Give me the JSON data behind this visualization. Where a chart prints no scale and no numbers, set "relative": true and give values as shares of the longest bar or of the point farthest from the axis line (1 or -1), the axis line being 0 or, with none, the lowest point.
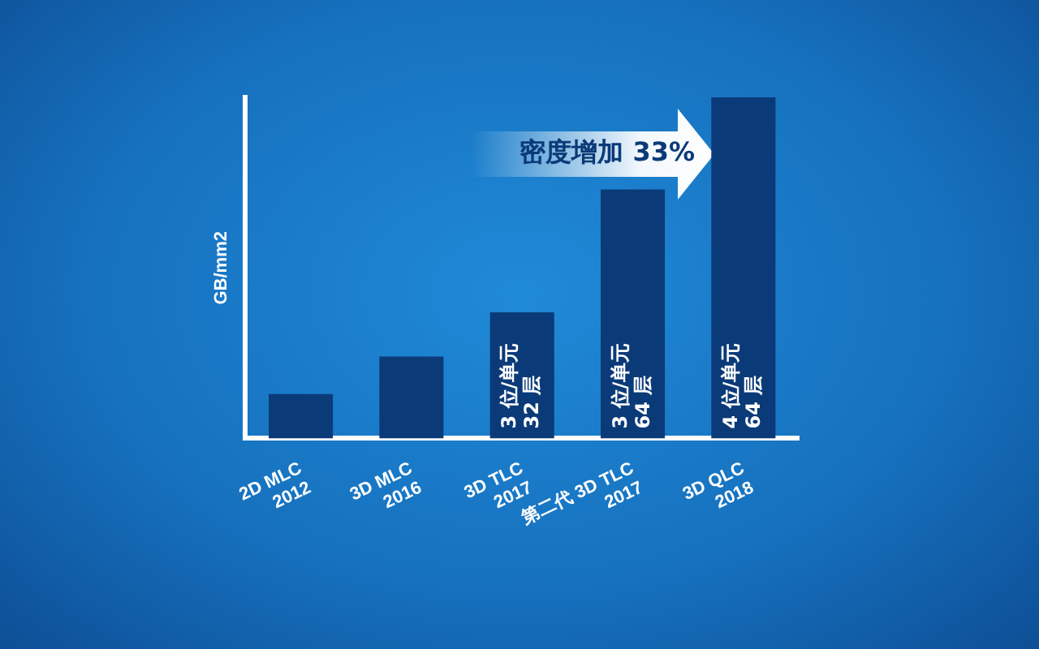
{
  "chart_data": {
    "type": "bar",
    "relative": true,
    "ylabel": "GB/mm2",
    "categories": [
      "2D MLC\n2012",
      "3D MLC\n2016",
      "3D TLC\n2017",
      "第二代 3D TLC\n2017",
      "3D QLC\n2018"
    ],
    "values": [
      0.13,
      0.24,
      0.37,
      0.73,
      1
    ],
    "color": "#0b3a78",
    "annotations": [
      {
        "text": "3 位/单元\n32 层",
        "x": "3D TLC\n2017"
      },
      {
        "text": "3 位/单元\n64 层",
        "x": "第二代 3D TLC\n2017"
      },
      {
        "text": "4 位/单元\n64 层",
        "x": "3D QLC\n2018"
      },
      "密度增加 33%"
    ],
    "grid": false,
    "legend": false
  }
}
